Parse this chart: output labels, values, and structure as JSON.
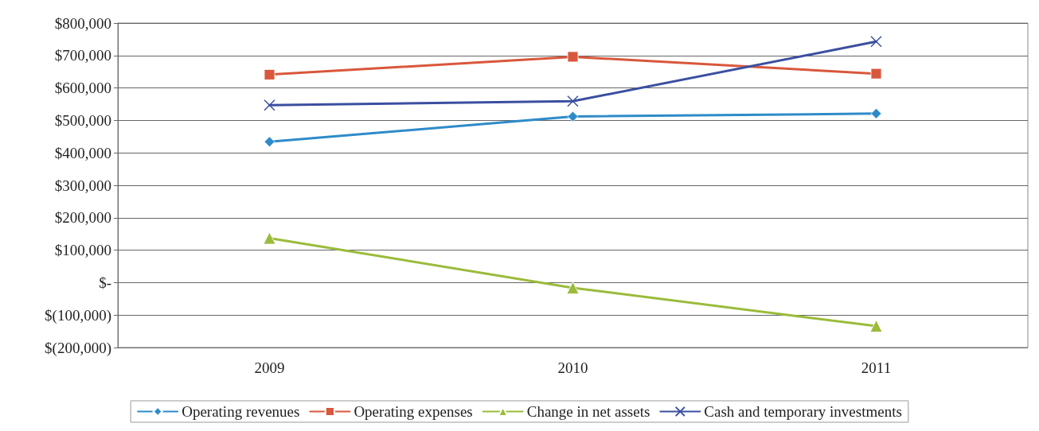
{
  "chart_data": {
    "type": "line",
    "categories": [
      "2009",
      "2010",
      "2011"
    ],
    "series": [
      {
        "name": "Operating revenues",
        "color": "#2e8bc9",
        "marker": "diamond",
        "values": [
          434000,
          512000,
          521000
        ]
      },
      {
        "name": "Operating expenses",
        "color": "#d9573c",
        "marker": "square",
        "values": [
          641000,
          696000,
          644000
        ]
      },
      {
        "name": "Change in net assets",
        "color": "#9bbb3b",
        "marker": "triangle",
        "values": [
          137000,
          -16000,
          -134000
        ]
      },
      {
        "name": "Cash and temporary investments",
        "color": "#3b4fa0",
        "marker": "cross",
        "values": [
          547000,
          559000,
          743000
        ]
      }
    ],
    "ylim": [
      -200000,
      800000
    ],
    "yticks": [
      {
        "value": -200000,
        "label": "$(200,000)"
      },
      {
        "value": -100000,
        "label": "$(100,000)"
      },
      {
        "value": 0,
        "label": "$-"
      },
      {
        "value": 100000,
        "label": "$100,000"
      },
      {
        "value": 200000,
        "label": "$200,000"
      },
      {
        "value": 300000,
        "label": "$300,000"
      },
      {
        "value": 400000,
        "label": "$400,000"
      },
      {
        "value": 500000,
        "label": "$500,000"
      },
      {
        "value": 600000,
        "label": "$600,000"
      },
      {
        "value": 700000,
        "label": "$700,000"
      },
      {
        "value": 800000,
        "label": "$800,000"
      }
    ],
    "grid": "y",
    "legend": "bottom",
    "line_style": "solid"
  }
}
